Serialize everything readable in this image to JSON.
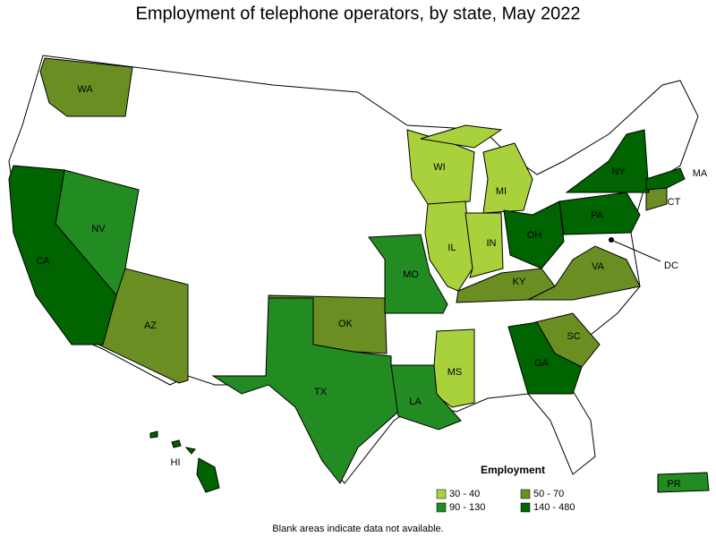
{
  "title": "Employment of telephone operators, by state, May 2022",
  "legend": {
    "title": "Employment",
    "bins": [
      {
        "label": "30 - 40",
        "color": "#a8d13c",
        "states": [
          "WI",
          "MI",
          "IL",
          "IN",
          "MS"
        ]
      },
      {
        "label": "50 - 70",
        "color": "#6b8e23",
        "states": [
          "WA",
          "AZ",
          "OK",
          "KY",
          "VA",
          "SC",
          "CT"
        ]
      },
      {
        "label": "90 - 130",
        "color": "#228b22",
        "states": [
          "NV",
          "TX",
          "MO",
          "LA",
          "PR"
        ]
      },
      {
        "label": "140 - 480",
        "color": "#006400",
        "states": [
          "CA",
          "OH",
          "PA",
          "NY",
          "MA",
          "GA",
          "HI"
        ]
      }
    ]
  },
  "callouts": [
    "DC"
  ],
  "note": "Blank areas indicate data not available."
}
